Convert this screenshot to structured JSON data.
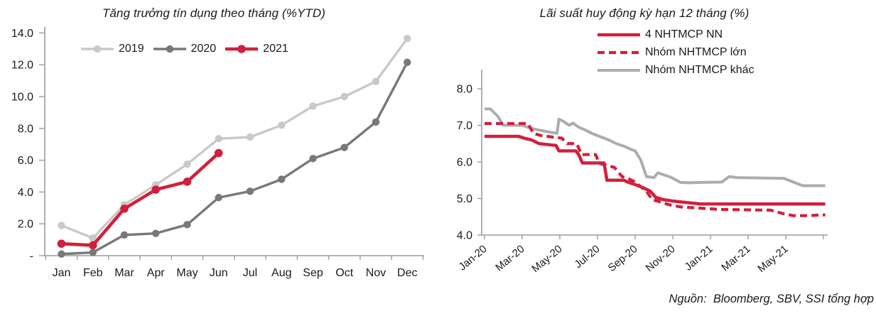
{
  "source_note": "Nguồn:  Bloomberg, SBV, SSI tổng hợp",
  "chart_data": [
    {
      "type": "line",
      "title": "Tăng trưởng tín dụng theo tháng (%YTD)",
      "categories": [
        "Jan",
        "Feb",
        "Mar",
        "Apr",
        "May",
        "Jun",
        "Jul",
        "Aug",
        "Sep",
        "Oct",
        "Nov",
        "Dec"
      ],
      "xlabel": "",
      "ylabel": "",
      "ylim": [
        0,
        14.5
      ],
      "grid": false,
      "legend_position": "top-inside",
      "y_ticks": [
        14,
        12,
        10,
        8,
        6,
        4,
        2,
        0
      ],
      "y_tick_labels": [
        "14.0",
        "12.0",
        "10.0",
        "8.0",
        "6.0",
        "4.0",
        "2.0",
        "-"
      ],
      "series": [
        {
          "name": "2019",
          "color": "#C9C9C9",
          "width": 3.4,
          "marker": true,
          "marker_r": 5.2,
          "values": [
            1.9,
            1.1,
            3.2,
            4.45,
            5.75,
            7.35,
            7.45,
            8.2,
            9.4,
            10.0,
            10.95,
            13.65
          ]
        },
        {
          "name": "2020",
          "color": "#787878",
          "width": 3.4,
          "marker": true,
          "marker_r": 5.2,
          "values": [
            0.1,
            0.2,
            1.3,
            1.4,
            1.95,
            3.65,
            4.05,
            4.8,
            6.1,
            6.8,
            8.4,
            12.15
          ]
        },
        {
          "name": "2021",
          "color": "#D1203D",
          "width": 4.6,
          "marker": true,
          "marker_r": 5.8,
          "values": [
            0.75,
            0.65,
            2.95,
            4.15,
            4.65,
            6.45
          ]
        }
      ]
    },
    {
      "type": "line",
      "title": "Lãi suất huy động kỳ hạn 12 tháng (%)",
      "x_unit": "months since Jan-2020",
      "x_tick_labels": [
        "Jan-20",
        "Mar-20",
        "May-20",
        "Jul-20",
        "Sep-20",
        "Nov-20",
        "Jan-21",
        "Mar-21",
        "May-21"
      ],
      "xlabel": "",
      "ylabel": "",
      "ylim": [
        4,
        8.6
      ],
      "grid": false,
      "legend_position": "top",
      "y_ticks": [
        8,
        7,
        6,
        5,
        4
      ],
      "y_tick_labels": [
        "8.0",
        "7.0",
        "6.0",
        "5.0",
        "4.0"
      ],
      "series": [
        {
          "name": "Nhóm NHTMCP khác",
          "color": "#ACACAC",
          "width": 4.0,
          "dash": "solid",
          "marker": false,
          "x": [
            0,
            0.3,
            0.7,
            1.0,
            2.0,
            2.4,
            2.8,
            3.3,
            3.85,
            3.95,
            4.15,
            4.5,
            4.7,
            5.0,
            5.4,
            5.7,
            6.1,
            6.6,
            7.0,
            7.4,
            7.7,
            8.0,
            8.3,
            8.6,
            9.0,
            9.2,
            9.5,
            9.9,
            10.4,
            10.9,
            11.4,
            12.6,
            13.0,
            13.4,
            15.9,
            16.4,
            16.9,
            18.1
          ],
          "values": [
            7.45,
            7.45,
            7.25,
            7.0,
            7.0,
            6.93,
            6.88,
            6.83,
            6.78,
            7.17,
            7.12,
            7.0,
            7.06,
            6.95,
            6.86,
            6.78,
            6.7,
            6.6,
            6.5,
            6.43,
            6.36,
            6.3,
            6.05,
            5.6,
            5.57,
            5.7,
            5.65,
            5.58,
            5.44,
            5.43,
            5.44,
            5.45,
            5.6,
            5.57,
            5.55,
            5.45,
            5.35,
            5.35
          ]
        },
        {
          "name": "4 NHTMCP NN",
          "color": "#D1203D",
          "width": 4.5,
          "dash": "solid",
          "marker": false,
          "x": [
            0,
            1.8,
            2.1,
            2.5,
            2.9,
            3.8,
            3.95,
            4.85,
            5.0,
            5.2,
            6.35,
            6.5,
            7.4,
            7.6,
            8.0,
            8.4,
            8.8,
            9.1,
            9.5,
            10.0,
            10.7,
            11.5,
            18.1
          ],
          "values": [
            6.7,
            6.7,
            6.65,
            6.6,
            6.5,
            6.45,
            6.3,
            6.3,
            6.2,
            5.97,
            5.97,
            5.5,
            5.5,
            5.45,
            5.38,
            5.3,
            5.2,
            5.03,
            4.97,
            4.93,
            4.89,
            4.85,
            4.85
          ]
        },
        {
          "name": "Nhóm NHTMCP lớn",
          "color": "#D1203D",
          "width": 4.2,
          "dash": "dashed",
          "marker": false,
          "x": [
            0,
            2.3,
            2.6,
            3.0,
            3.9,
            4.1,
            4.4,
            4.9,
            5.15,
            5.9,
            6.1,
            6.5,
            6.9,
            7.3,
            7.6,
            8.0,
            8.3,
            8.6,
            8.9,
            9.3,
            9.8,
            10.4,
            11.0,
            12.5,
            15.2,
            15.9,
            16.4,
            17.3,
            17.8,
            18.1
          ],
          "values": [
            7.05,
            7.05,
            6.78,
            6.72,
            6.66,
            6.65,
            6.5,
            6.5,
            6.2,
            6.2,
            5.96,
            5.9,
            5.85,
            5.6,
            5.55,
            5.45,
            5.32,
            5.2,
            4.97,
            4.91,
            4.83,
            4.77,
            4.75,
            4.7,
            4.68,
            4.58,
            4.53,
            4.53,
            4.55,
            4.55
          ]
        }
      ]
    }
  ]
}
